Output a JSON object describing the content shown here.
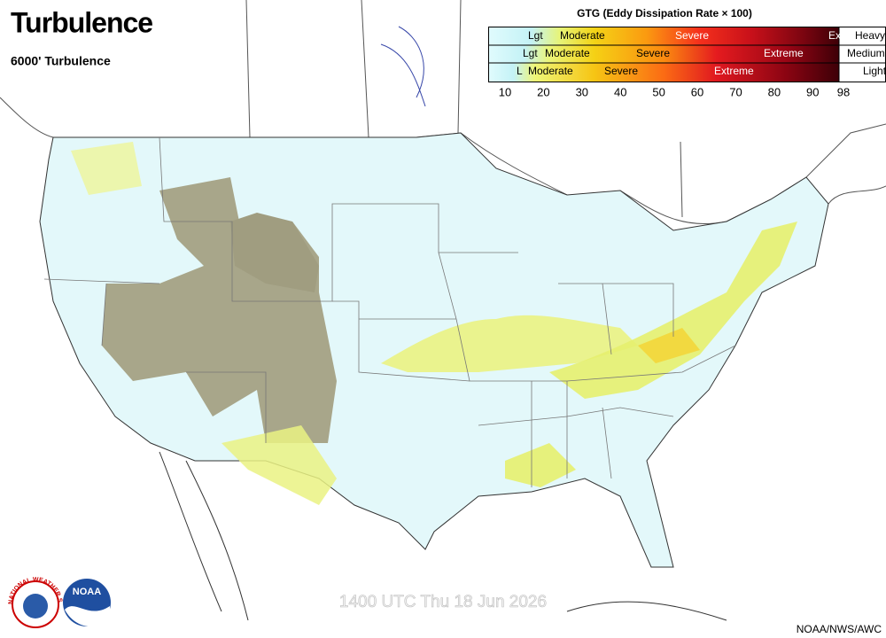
{
  "header": {
    "title": "Turbulence",
    "subtitle": "6000' Turbulence"
  },
  "legend": {
    "title": "GTG (Eddy Dissipation Rate × 100)",
    "rows": [
      {
        "labels": [
          "Lgt",
          "Moderate",
          "Severe",
          "Ex"
        ],
        "category": "Heavy"
      },
      {
        "labels": [
          "Lgt",
          "Moderate",
          "Severe",
          "Extreme"
        ],
        "category": "Medium"
      },
      {
        "labels": [
          "L",
          "Moderate",
          "Severe",
          "Extreme"
        ],
        "category": "Light"
      }
    ],
    "ticks": [
      10,
      20,
      30,
      40,
      50,
      60,
      70,
      80,
      90,
      98
    ]
  },
  "footer": {
    "valid_time": "1400 UTC Thu 18 Jun 2026",
    "credit": "NOAA/NWS/AWC"
  },
  "logos": {
    "nws": "NATIONAL WEATHER SERVICE",
    "noaa": "NOAA"
  }
}
